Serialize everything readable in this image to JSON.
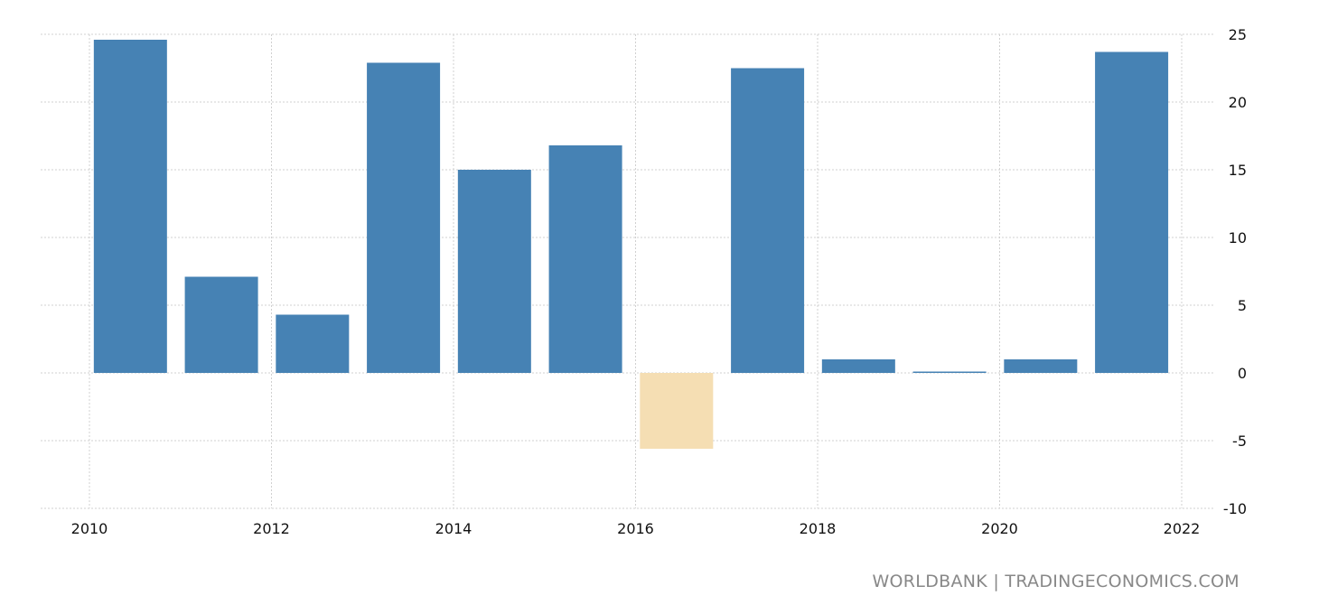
{
  "chart_data": {
    "type": "bar",
    "categories": [
      "2010",
      "2011",
      "2012",
      "2013",
      "2014",
      "2015",
      "2016",
      "2017",
      "2018",
      "2019",
      "2020",
      "2021"
    ],
    "values": [
      24.6,
      7.1,
      4.3,
      22.9,
      15.0,
      16.8,
      -5.6,
      22.5,
      1.0,
      0.1,
      1.0,
      23.7
    ],
    "xticks": [
      "2010",
      "2012",
      "2014",
      "2016",
      "2018",
      "2020",
      "2022"
    ],
    "yticks": [
      "25",
      "20",
      "15",
      "10",
      "5",
      "0",
      "-5",
      "-10"
    ],
    "ylim": [
      -10,
      25
    ],
    "xlim": [
      2010,
      2022
    ],
    "grid": true,
    "y_axis_side": "right",
    "colors": {
      "positive": "#4682b4",
      "negative": "#f5deb3",
      "grid": "#d0d0d0"
    }
  },
  "source": "WORLDBANK | TRADINGECONOMICS.COM"
}
